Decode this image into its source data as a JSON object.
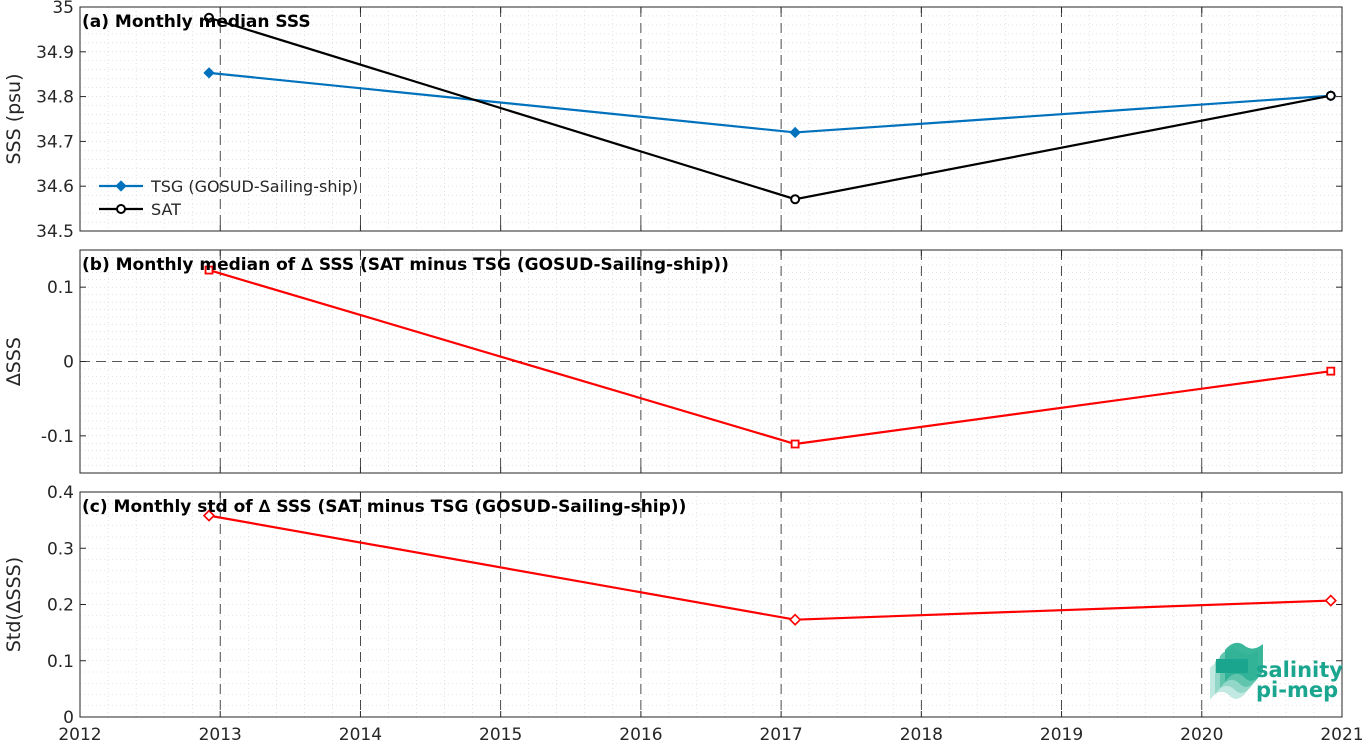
{
  "chart_data": [
    {
      "type": "line",
      "title": "(a) Monthly median SSS",
      "ylabel": "SSS (psu)",
      "xlim": [
        2012,
        2021
      ],
      "ylim": [
        34.5,
        35
      ],
      "yticks": [
        "34.5",
        "34.6",
        "34.7",
        "34.8",
        "34.9",
        "35"
      ],
      "x": [
        2012.92,
        2017.1,
        2020.92
      ],
      "series": [
        {
          "name": "TSG (GOSUD-Sailing-ship)",
          "values": [
            34.853,
            34.72,
            34.802
          ],
          "color": "#0072BD",
          "marker": "diamond-filled"
        },
        {
          "name": "SAT",
          "values": [
            34.976,
            34.571,
            34.802
          ],
          "color": "#000000",
          "marker": "circle"
        }
      ],
      "legend_position": "lower-left",
      "grid": true
    },
    {
      "type": "line",
      "title": "(b) Monthly median of ∆ SSS (SAT minus TSG (GOSUD-Sailing-ship))",
      "ylabel": "∆SSS",
      "xlim": [
        2012,
        2021
      ],
      "ylim": [
        -0.15,
        0.15
      ],
      "yticks": [
        "-0.1",
        "0",
        "0.1"
      ],
      "x": [
        2012.92,
        2017.1,
        2020.92
      ],
      "series": [
        {
          "values": [
            0.123,
            -0.111,
            -0.013
          ],
          "color": "#FF0000",
          "marker": "square"
        }
      ],
      "reference_line": 0,
      "grid": true
    },
    {
      "type": "line",
      "title": "(c) Monthly std of ∆ SSS (SAT minus TSG (GOSUD-Sailing-ship))",
      "ylabel": "Std(∆SSS)",
      "xlim": [
        2012,
        2021
      ],
      "ylim": [
        0,
        0.4
      ],
      "yticks": [
        "0",
        "0.1",
        "0.2",
        "0.3",
        "0.4"
      ],
      "xticks": [
        "2012",
        "2013",
        "2014",
        "2015",
        "2016",
        "2017",
        "2018",
        "2019",
        "2020",
        "2021"
      ],
      "x": [
        2012.92,
        2017.1,
        2020.92
      ],
      "series": [
        {
          "values": [
            0.358,
            0.173,
            0.207
          ],
          "color": "#FF0000",
          "marker": "diamond"
        }
      ],
      "grid": true
    }
  ],
  "logo": {
    "line1": "salinity",
    "line2": "pi-mep",
    "color": "#1AA58F"
  }
}
